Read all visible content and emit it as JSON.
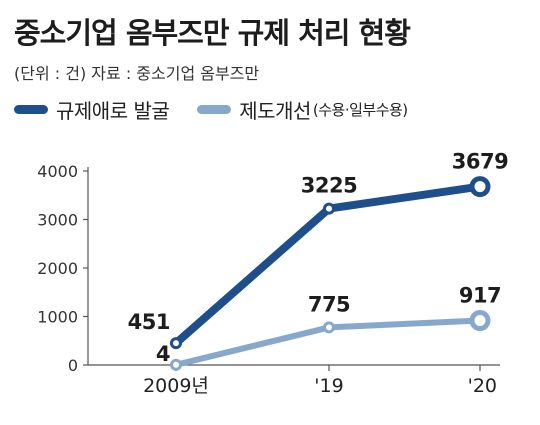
{
  "header": {
    "title": "중소기업 옴부즈만 규제 처리 현황",
    "subtitle": "(단위 : 건)  자료 : 중소기업 옴부즈만"
  },
  "legend": [
    {
      "label": "규제애로 발굴",
      "note": "",
      "color": "#1f4f8a"
    },
    {
      "label": "제도개선",
      "note": "(수용·일부수용)",
      "color": "#86a8cc"
    }
  ],
  "chart_data": {
    "type": "line",
    "categories": [
      "2009년",
      "'19",
      "'20"
    ],
    "series": [
      {
        "name": "규제애로 발굴",
        "values": [
          451,
          3225,
          3679
        ],
        "labels": [
          "451",
          "3225",
          "3679"
        ],
        "color": "#1f4f8a"
      },
      {
        "name": "제도개선 (수용·일부수용)",
        "values": [
          4,
          775,
          917
        ],
        "labels": [
          "4",
          "775",
          "917"
        ],
        "color": "#86a8cc"
      }
    ],
    "yticks": [
      0,
      1000,
      2000,
      3000,
      4000
    ],
    "ylim": [
      0,
      4000
    ],
    "grid": false,
    "legend_position": "top-left"
  }
}
